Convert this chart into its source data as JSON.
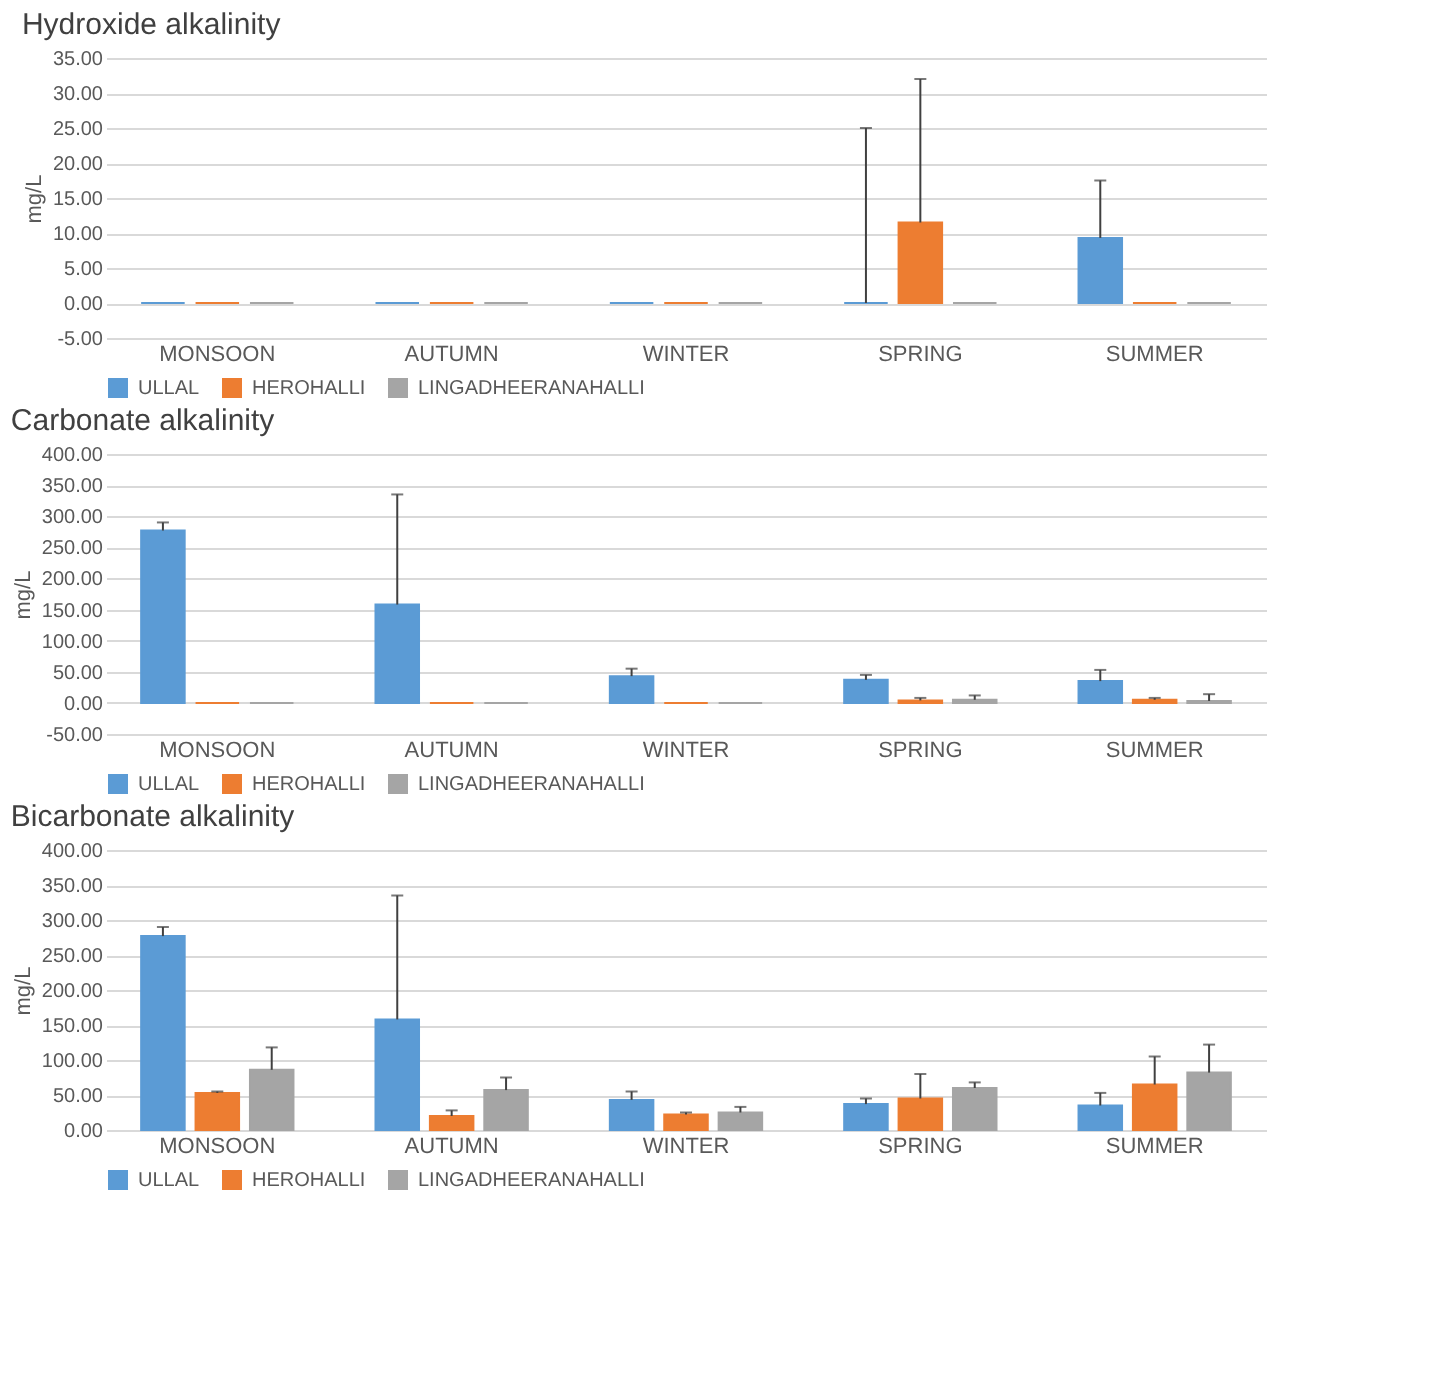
{
  "chart_data": [
    {
      "type": "bar",
      "title": "Hydroxide alkalinity",
      "ylabel": "mg/L",
      "categories": [
        "MONSOON",
        "AUTUMN",
        "WINTER",
        "SPRING",
        "SUMMER"
      ],
      "series": [
        {
          "name": "ULLAL",
          "color": "#5b9bd5",
          "values": [
            0,
            0,
            0,
            0,
            9.3
          ],
          "errors": [
            null,
            null,
            null,
            [
              0,
              25
            ],
            [
              9.3,
              17.5
            ]
          ]
        },
        {
          "name": "HEROHALLI",
          "color": "#ed7d31",
          "values": [
            0,
            0,
            0,
            11.5,
            0
          ],
          "errors": [
            null,
            null,
            null,
            [
              11.5,
              32
            ],
            null
          ]
        },
        {
          "name": "LINGADHEERANAHALLI",
          "color": "#a5a5a5",
          "values": [
            0,
            0,
            0,
            0,
            0
          ]
        }
      ],
      "ylim": [
        -5,
        35
      ],
      "yticks": [
        {
          "value": -5,
          "label": "-5.00"
        },
        {
          "value": 0,
          "label": "0.00"
        },
        {
          "value": 5,
          "label": "5.00"
        },
        {
          "value": 10,
          "label": "10.00"
        },
        {
          "value": 15,
          "label": "15.00"
        },
        {
          "value": 20,
          "label": "20.00"
        },
        {
          "value": 25,
          "label": "25.00"
        },
        {
          "value": 30,
          "label": "30.00"
        },
        {
          "value": 35,
          "label": "35.00"
        }
      ],
      "grid": "y",
      "legend": "bottom"
    },
    {
      "type": "bar",
      "title": "Carbonate alkalinity",
      "ylabel": "mg/L",
      "categories": [
        "MONSOON",
        "AUTUMN",
        "WINTER",
        "SPRING",
        "SUMMER"
      ],
      "series": [
        {
          "name": "ULLAL",
          "color": "#5b9bd5",
          "values": [
            277,
            158,
            43,
            37,
            35
          ],
          "errors": [
            [
              277,
              290
            ],
            [
              158,
              335
            ],
            [
              43,
              55
            ],
            [
              37,
              45
            ],
            [
              35,
              53
            ]
          ]
        },
        {
          "name": "HEROHALLI",
          "color": "#ed7d31",
          "values": [
            0,
            0,
            0,
            4,
            5
          ],
          "errors": [
            null,
            null,
            null,
            [
              4,
              8
            ],
            [
              5,
              8
            ]
          ]
        },
        {
          "name": "LINGADHEERANAHALLI",
          "color": "#a5a5a5",
          "values": [
            0,
            0,
            0,
            5,
            3
          ],
          "errors": [
            null,
            null,
            null,
            [
              5,
              12
            ],
            [
              3,
              14
            ]
          ]
        }
      ],
      "ylim": [
        -50,
        400
      ],
      "yticks": [
        {
          "value": -50,
          "label": "-50.00"
        },
        {
          "value": 0,
          "label": "0.00"
        },
        {
          "value": 50,
          "label": "50.00"
        },
        {
          "value": 100,
          "label": "100.00"
        },
        {
          "value": 150,
          "label": "150.00"
        },
        {
          "value": 200,
          "label": "200.00"
        },
        {
          "value": 250,
          "label": "250.00"
        },
        {
          "value": 300,
          "label": "300.00"
        },
        {
          "value": 350,
          "label": "350.00"
        },
        {
          "value": 400,
          "label": "400.00"
        }
      ],
      "grid": "y",
      "legend": "bottom"
    },
    {
      "type": "bar",
      "title": "Bicarbonate alkalinity",
      "ylabel": "mg/L",
      "categories": [
        "MONSOON",
        "AUTUMN",
        "WINTER",
        "SPRING",
        "SUMMER"
      ],
      "series": [
        {
          "name": "ULLAL",
          "color": "#5b9bd5",
          "values": [
            277,
            158,
            43,
            37,
            35
          ],
          "errors": [
            [
              277,
              290
            ],
            [
              158,
              335
            ],
            [
              43,
              55
            ],
            [
              37,
              45
            ],
            [
              35,
              53
            ]
          ]
        },
        {
          "name": "HEROHALLI",
          "color": "#ed7d31",
          "values": [
            53,
            20,
            22,
            45,
            65
          ],
          "errors": [
            [
              53,
              55
            ],
            [
              20,
              28
            ],
            [
              22,
              25
            ],
            [
              45,
              80
            ],
            [
              65,
              105
            ]
          ]
        },
        {
          "name": "LINGADHEERANAHALLI",
          "color": "#a5a5a5",
          "values": [
            86,
            57,
            25,
            60,
            82
          ],
          "errors": [
            [
              86,
              118
            ],
            [
              57,
              75
            ],
            [
              25,
              33
            ],
            [
              60,
              68
            ],
            [
              82,
              122
            ]
          ]
        }
      ],
      "ylim": [
        0,
        400
      ],
      "yticks": [
        {
          "value": 0,
          "label": "0.00"
        },
        {
          "value": 50,
          "label": "50.00"
        },
        {
          "value": 100,
          "label": "100.00"
        },
        {
          "value": 150,
          "label": "150.00"
        },
        {
          "value": 200,
          "label": "200.00"
        },
        {
          "value": 250,
          "label": "250.00"
        },
        {
          "value": 300,
          "label": "300.00"
        },
        {
          "value": 350,
          "label": "350.00"
        },
        {
          "value": 400,
          "label": "400.00"
        }
      ],
      "grid": "y",
      "legend": "bottom"
    }
  ]
}
